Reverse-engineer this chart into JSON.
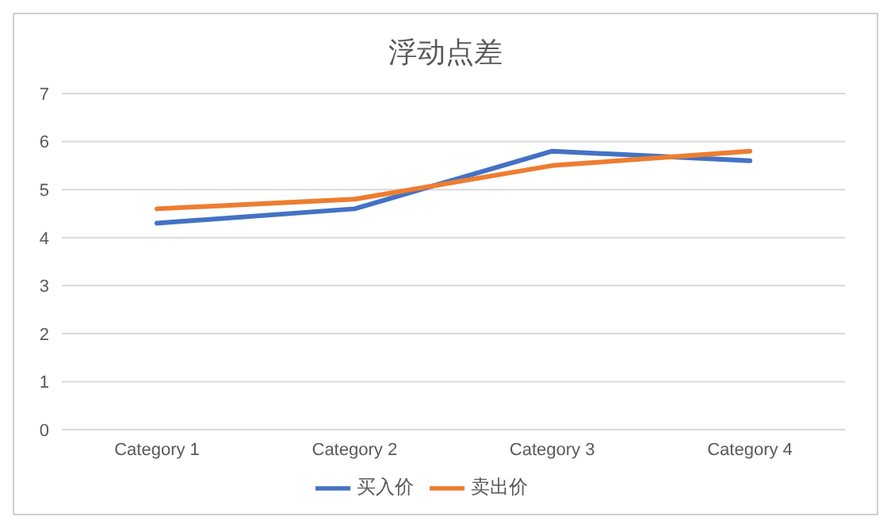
{
  "chart_data": {
    "type": "line",
    "title": "浮动点差",
    "categories": [
      "Category 1",
      "Category 2",
      "Category 3",
      "Category 4"
    ],
    "series": [
      {
        "name": "买入价",
        "color": "#4472c4",
        "values": [
          4.3,
          4.6,
          5.8,
          5.6
        ]
      },
      {
        "name": "卖出价",
        "color": "#ed7d31",
        "values": [
          4.6,
          4.8,
          5.5,
          5.8
        ]
      }
    ],
    "ylim": [
      0,
      7
    ],
    "yticks": [
      0,
      1,
      2,
      3,
      4,
      5,
      6,
      7
    ],
    "grid": "y",
    "legend": "bottom",
    "marker": "none",
    "line_style": "solid"
  }
}
